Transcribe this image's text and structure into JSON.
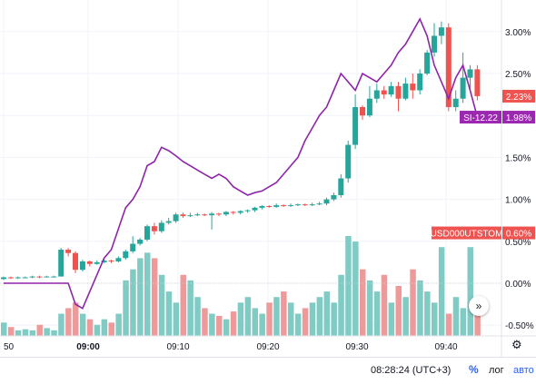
{
  "chart_data": {
    "type": "candlestick+line+volume",
    "price_axis_labels": [
      "3.00%",
      "2.50%",
      "2.00%",
      "1.50%",
      "1.00%",
      "0.50%",
      "0.00%",
      "-0.50%"
    ],
    "price_axis_values": [
      3.0,
      2.5,
      2.0,
      1.5,
      1.0,
      0.5,
      0.0,
      -0.5
    ],
    "time_axis_labels": [
      {
        "label": "50",
        "bold": false
      },
      {
        "label": "09:00",
        "bold": true
      },
      {
        "label": "09:10",
        "bold": false
      },
      {
        "label": "09:20",
        "bold": false
      },
      {
        "label": "09:30",
        "bold": false
      },
      {
        "label": "09:40",
        "bold": false
      }
    ],
    "badges": [
      {
        "text": "2.23%",
        "value": 2.23,
        "color": "#ef5350"
      },
      {
        "text": "SI-12.22",
        "value": 1.98,
        "color": "#9c27b0"
      },
      {
        "text": "1.98%",
        "value": 1.98,
        "color": "#9c27b0"
      },
      {
        "text": "USD000UTSTOM",
        "value": 0.6,
        "color": "#ef5350"
      },
      {
        "text": "0.60%",
        "value": 0.6,
        "color": "#ef5350"
      }
    ],
    "colors": {
      "up": "#26a69a",
      "down": "#ef5350",
      "line": "#8e24aa",
      "vol_up": "#80cbc4",
      "vol_down": "#ef9a9a"
    },
    "candles": [
      [
        0.05,
        0.07,
        0.04,
        0.08
      ],
      [
        0.07,
        0.06,
        0.05,
        0.08
      ],
      [
        0.06,
        0.07,
        0.05,
        0.08
      ],
      [
        0.07,
        0.07,
        0.06,
        0.08
      ],
      [
        0.07,
        0.08,
        0.06,
        0.09
      ],
      [
        0.08,
        0.07,
        0.06,
        0.09
      ],
      [
        0.07,
        0.08,
        0.07,
        0.09
      ],
      [
        0.08,
        0.08,
        0.07,
        0.09
      ],
      [
        0.08,
        0.4,
        0.08,
        0.42
      ],
      [
        0.4,
        0.36,
        0.32,
        0.42
      ],
      [
        0.36,
        0.16,
        0.12,
        0.38
      ],
      [
        0.16,
        0.26,
        0.14,
        0.28
      ],
      [
        0.26,
        0.23,
        0.2,
        0.27
      ],
      [
        0.23,
        0.25,
        0.22,
        0.27
      ],
      [
        0.25,
        0.27,
        0.24,
        0.29
      ],
      [
        0.27,
        0.26,
        0.24,
        0.28
      ],
      [
        0.26,
        0.3,
        0.25,
        0.32
      ],
      [
        0.3,
        0.38,
        0.28,
        0.4
      ],
      [
        0.38,
        0.47,
        0.36,
        0.56
      ],
      [
        0.47,
        0.52,
        0.45,
        0.54
      ],
      [
        0.52,
        0.68,
        0.5,
        0.7
      ],
      [
        0.68,
        0.62,
        0.58,
        0.72
      ],
      [
        0.62,
        0.72,
        0.6,
        0.75
      ],
      [
        0.72,
        0.74,
        0.7,
        0.78
      ],
      [
        0.74,
        0.82,
        0.72,
        0.84
      ],
      [
        0.82,
        0.8,
        0.78,
        0.84
      ],
      [
        0.8,
        0.81,
        0.79,
        0.84
      ],
      [
        0.81,
        0.82,
        0.8,
        0.84
      ],
      [
        0.82,
        0.81,
        0.8,
        0.83
      ],
      [
        0.81,
        0.83,
        0.64,
        0.85
      ],
      [
        0.83,
        0.82,
        0.8,
        0.84
      ],
      [
        0.82,
        0.85,
        0.8,
        0.86
      ],
      [
        0.85,
        0.84,
        0.82,
        0.86
      ],
      [
        0.84,
        0.86,
        0.82,
        0.87
      ],
      [
        0.86,
        0.87,
        0.84,
        0.88
      ],
      [
        0.87,
        0.9,
        0.85,
        0.91
      ],
      [
        0.9,
        0.92,
        0.88,
        0.93
      ],
      [
        0.92,
        0.91,
        0.9,
        0.93
      ],
      [
        0.91,
        0.93,
        0.9,
        0.95
      ],
      [
        0.93,
        0.92,
        0.91,
        0.94
      ],
      [
        0.92,
        0.93,
        0.91,
        0.95
      ],
      [
        0.93,
        0.94,
        0.92,
        0.95
      ],
      [
        0.94,
        0.93,
        0.92,
        0.95
      ],
      [
        0.93,
        0.94,
        0.92,
        0.96
      ],
      [
        0.94,
        0.95,
        0.93,
        0.97
      ],
      [
        0.95,
        1.0,
        0.93,
        1.02
      ],
      [
        1.0,
        1.05,
        0.98,
        1.08
      ],
      [
        1.05,
        1.25,
        1.02,
        1.3
      ],
      [
        1.25,
        1.65,
        1.2,
        1.7
      ],
      [
        1.65,
        2.1,
        1.6,
        2.25
      ],
      [
        2.1,
        2.0,
        1.95,
        2.12
      ],
      [
        2.0,
        2.2,
        1.98,
        2.35
      ],
      [
        2.2,
        2.3,
        2.15,
        2.38
      ],
      [
        2.3,
        2.25,
        2.2,
        2.35
      ],
      [
        2.25,
        2.35,
        2.22,
        2.4
      ],
      [
        2.35,
        2.2,
        2.05,
        2.4
      ],
      [
        2.2,
        2.38,
        2.18,
        2.45
      ],
      [
        2.38,
        2.3,
        2.2,
        2.5
      ],
      [
        2.3,
        2.5,
        2.25,
        2.55
      ],
      [
        2.5,
        2.75,
        2.48,
        2.78
      ],
      [
        2.75,
        2.95,
        2.7,
        3.1
      ],
      [
        2.95,
        3.05,
        2.85,
        3.12
      ],
      [
        3.05,
        2.1,
        2.05,
        3.1
      ],
      [
        2.1,
        2.2,
        2.05,
        2.3
      ],
      [
        2.2,
        2.45,
        2.15,
        2.75
      ],
      [
        2.45,
        2.55,
        2.3,
        2.6
      ],
      [
        2.55,
        2.23,
        2.18,
        2.6
      ]
    ],
    "line_values": [
      0.0,
      0.0,
      0.0,
      0.0,
      0.0,
      0.0,
      0.0,
      0.0,
      0.0,
      0.0,
      -0.25,
      -0.3,
      -0.1,
      0.1,
      0.3,
      0.4,
      0.65,
      0.9,
      1.0,
      1.15,
      1.4,
      1.45,
      1.62,
      1.58,
      1.52,
      1.45,
      1.4,
      1.35,
      1.3,
      1.25,
      1.3,
      1.25,
      1.15,
      1.1,
      1.05,
      1.08,
      1.1,
      1.15,
      1.2,
      1.3,
      1.4,
      1.5,
      1.7,
      1.85,
      2.0,
      2.1,
      2.3,
      2.5,
      2.4,
      2.3,
      2.5,
      2.45,
      2.4,
      2.5,
      2.6,
      2.75,
      2.85,
      3.0,
      3.15,
      2.95,
      2.6,
      2.4,
      2.2,
      2.45,
      2.6,
      2.3,
      1.98
    ],
    "volumes": [
      0.12,
      0.08,
      0.05,
      0.06,
      0.05,
      0.1,
      0.07,
      0.05,
      0.2,
      0.25,
      0.3,
      0.2,
      0.15,
      0.1,
      0.15,
      0.12,
      0.2,
      0.5,
      0.6,
      0.7,
      0.75,
      0.7,
      0.55,
      0.4,
      0.3,
      0.55,
      0.5,
      0.35,
      0.25,
      0.2,
      0.18,
      0.15,
      0.22,
      0.3,
      0.35,
      0.25,
      0.2,
      0.3,
      0.35,
      0.4,
      0.3,
      0.2,
      0.25,
      0.3,
      0.35,
      0.4,
      0.3,
      0.55,
      0.9,
      0.85,
      0.6,
      0.5,
      0.4,
      0.55,
      0.3,
      0.45,
      0.35,
      0.6,
      0.5,
      0.4,
      0.3,
      0.8,
      0.2,
      0.35,
      0.25,
      0.8,
      0.3
    ]
  },
  "footer": {
    "time": "08:28:24 (UTC+3)",
    "percent_btn": "%",
    "log_btn": "лог",
    "auto_btn": "авто"
  },
  "scroll_btn": "»",
  "gear_glyph": "⚙"
}
